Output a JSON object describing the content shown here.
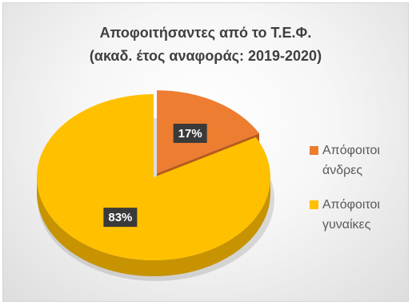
{
  "chart_data": {
    "type": "pie",
    "style": "3d",
    "title_lines": [
      "Αποφοιτήσαντες από το Τ.Ε.Φ.",
      "(ακαδ. έτος αναφοράς: 2019-2020)"
    ],
    "slices": [
      {
        "name": "Απόφοιτοι άνδρες",
        "value": 17,
        "label": "17%",
        "color": "#ED7D31",
        "side_color": "#B65B1D",
        "legend_lines": [
          "Απόφοιτοι",
          "άνδρες"
        ]
      },
      {
        "name": "Απόφοιτοι γυναίκες",
        "value": 83,
        "label": "83%",
        "color": "#FFC000",
        "side_color": "#C79300",
        "legend_lines": [
          "Απόφοιτοι",
          "γυναίκες"
        ]
      }
    ],
    "exploded_slice": "Απόφοιτοι άνδρες",
    "data_label_background": "#3A3A3A",
    "data_label_color": "#FFFFFF",
    "legend_position": "right"
  }
}
